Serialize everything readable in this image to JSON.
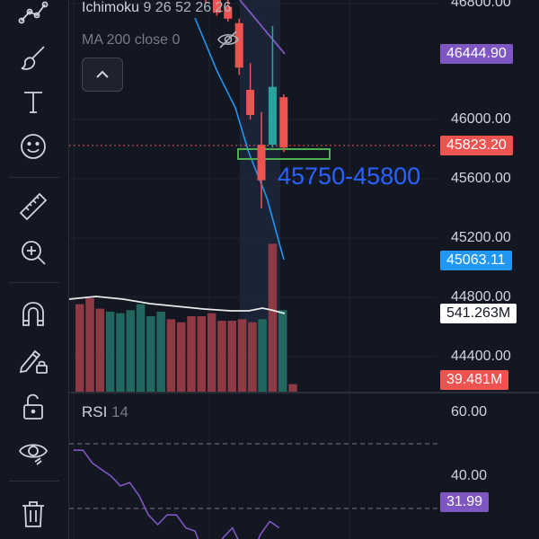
{
  "colors": {
    "background": "#131722",
    "up": "#26a69a",
    "down": "#ef5350",
    "up_volume": "#22675f",
    "down_volume": "#8e3a45",
    "ichimoku_badge": "#7e57c2",
    "ma_badge": "#2962ff",
    "accent_blue": "#2962ff",
    "rsi_line": "#7e57c2",
    "zone_box": "#4caf50"
  },
  "toolbar": {
    "items": [
      {
        "icon": "trend-line-icon"
      },
      {
        "icon": "brush-icon"
      },
      {
        "icon": "text-icon"
      },
      {
        "icon": "emoji-icon"
      },
      {
        "icon": "ruler-icon"
      },
      {
        "icon": "zoom-in-icon"
      },
      {
        "icon": "magnet-icon"
      },
      {
        "icon": "lock-drawing-icon"
      },
      {
        "icon": "unlock-icon"
      },
      {
        "icon": "eye-icon"
      },
      {
        "icon": "trash-icon"
      }
    ]
  },
  "legend": {
    "ichimoku": {
      "name": "Ichimoku",
      "params": "9 26 52 26 26"
    },
    "ma": {
      "name": "MA 200 close 0"
    },
    "collapse_icon": "chevron-up-icon",
    "hide_icon": "eye-off-icon"
  },
  "price_axis": {
    "ticks": [
      "46800.00",
      "46000.00",
      "45600.00",
      "45200.00",
      "44800.00",
      "44400.00"
    ],
    "badges": {
      "ichimoku_value": "46444.90",
      "current_price": "45823.20",
      "ma_value": "45063.11",
      "volume_ma": "541.263M",
      "volume": "39.481M"
    }
  },
  "annotation": {
    "range_label": "45750-45800"
  },
  "rsi": {
    "label": "RSI",
    "length": "14",
    "ticks": [
      "60.00",
      "40.00"
    ],
    "value": "31.99",
    "values": [
      58,
      58,
      54,
      52,
      50,
      47,
      48,
      44,
      38,
      35,
      38,
      38,
      34,
      33,
      25,
      26,
      31,
      34,
      28,
      25,
      32,
      36,
      34
    ]
  },
  "candles": [
    {
      "o": 46920,
      "h": 47000,
      "l": 46780,
      "c": 46830
    },
    {
      "o": 46830,
      "h": 46900,
      "l": 46700,
      "c": 46720
    },
    {
      "o": 46760,
      "h": 46860,
      "l": 46660,
      "c": 46680
    },
    {
      "o": 46650,
      "h": 46680,
      "l": 46300,
      "c": 46350
    },
    {
      "o": 46200,
      "h": 46380,
      "l": 46000,
      "c": 46030
    },
    {
      "o": 45830,
      "h": 46050,
      "l": 45400,
      "c": 45590
    },
    {
      "o": 45830,
      "h": 46630,
      "l": 45810,
      "c": 46220
    },
    {
      "o": 46150,
      "h": 46170,
      "l": 45780,
      "c": 45810
    }
  ],
  "volume": [
    58,
    62,
    55,
    53,
    52,
    54,
    58,
    50,
    53,
    48,
    46,
    50,
    50,
    52,
    47,
    47,
    48,
    46,
    48,
    98,
    54,
    5
  ]
}
